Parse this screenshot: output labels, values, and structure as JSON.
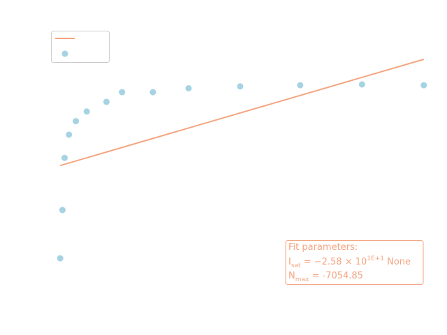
{
  "chart_data": {
    "type": "scatter",
    "title": "",
    "xlabel": "",
    "ylabel": "",
    "xlim": [
      -0.12,
      10.1
    ],
    "ylim": [
      -0.5,
      6.8
    ],
    "grid": false,
    "axes_visible": false,
    "legend_placement": "top-left",
    "series": [
      {
        "kind": "line",
        "color": "#f4a582",
        "x": [
          0,
          10
        ],
        "y": [
          3.2,
          5.95
        ]
      },
      {
        "kind": "points",
        "color": "#a6d3e3",
        "x": [
          0.0,
          0.06,
          0.12,
          0.24,
          0.43,
          0.73,
          1.27,
          1.7,
          2.55,
          3.53,
          4.95,
          6.6,
          8.3,
          10.0
        ],
        "y": [
          0.8,
          2.05,
          3.4,
          4.0,
          4.35,
          4.6,
          4.85,
          5.1,
          5.1,
          5.2,
          5.25,
          5.28,
          5.3,
          5.28
        ]
      }
    ],
    "annotation": {
      "heading": "Fit parameters:",
      "line1": {
        "symbol": "I",
        "subscript": "sat",
        "mid": " = −2.58 × 10",
        "superscript": "1E+1",
        "tail": " None"
      },
      "line2": {
        "symbol": "N",
        "subscript": "max",
        "tail": " = -7054.85"
      }
    },
    "legend_marker_point": {
      "x": 0.02,
      "y": 5.85
    }
  }
}
